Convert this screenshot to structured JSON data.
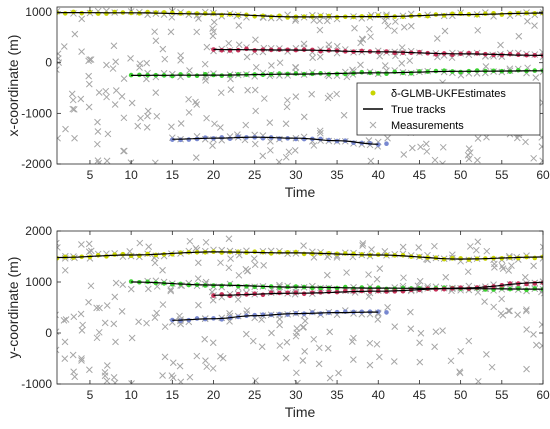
{
  "chart_data": [
    {
      "type": "scatter",
      "xlabel": "Time",
      "ylabel": "x-coordinate (m)",
      "xlim": [
        1,
        60
      ],
      "ylim": [
        -2000,
        1100
      ],
      "xticks": [
        5,
        10,
        15,
        20,
        25,
        30,
        35,
        40,
        45,
        50,
        55,
        60
      ],
      "yticks": [
        -2000,
        -1000,
        0,
        1000
      ],
      "legend": {
        "placement": "right-middle",
        "entries": [
          {
            "label": "δ-GLMB-UKFEstimates",
            "marker": "dot",
            "color": "#c8d400"
          },
          {
            "label": "True tracks",
            "marker": "line",
            "color": "#000000"
          },
          {
            "label": "Measurements",
            "marker": "x",
            "color": "#aaaaaa"
          }
        ]
      },
      "tracks": [
        {
          "color": "#c8d400",
          "t_start": 1,
          "t_end": 60,
          "t_est_end": 60,
          "truth": [
            [
              1,
              990
            ],
            [
              10,
              985
            ],
            [
              20,
              960
            ],
            [
              30,
              905
            ],
            [
              40,
              910
            ],
            [
              50,
              950
            ],
            [
              60,
              980
            ]
          ]
        },
        {
          "color": "#c8325a",
          "t_start": 20,
          "t_end": 60,
          "t_est_end": 60,
          "truth": [
            [
              20,
              260
            ],
            [
              30,
              250
            ],
            [
              40,
              215
            ],
            [
              50,
              175
            ],
            [
              60,
              145
            ]
          ]
        },
        {
          "color": "#3cd232",
          "t_start": 10,
          "t_end": 60,
          "t_est_end": 60,
          "truth": [
            [
              10,
              -250
            ],
            [
              20,
              -245
            ],
            [
              30,
              -225
            ],
            [
              40,
              -200
            ],
            [
              50,
              -170
            ],
            [
              60,
              -160
            ]
          ]
        },
        {
          "color": "#7888d0",
          "t_start": 15,
          "t_end": 40,
          "t_est_end": 41,
          "truth": [
            [
              15,
              -1510
            ],
            [
              20,
              -1490
            ],
            [
              25,
              -1470
            ],
            [
              30,
              -1490
            ],
            [
              35,
              -1540
            ],
            [
              40,
              -1610
            ]
          ]
        }
      ]
    },
    {
      "type": "scatter",
      "xlabel": "Time",
      "ylabel": "y-coordinate (m)",
      "xlim": [
        1,
        60
      ],
      "ylim": [
        -1000,
        2000
      ],
      "xticks": [
        5,
        10,
        15,
        20,
        25,
        30,
        35,
        40,
        45,
        50,
        55,
        60
      ],
      "yticks": [
        -1000,
        0,
        1000,
        2000
      ],
      "tracks": [
        {
          "color": "#c8d400",
          "t_start": 1,
          "t_end": 60,
          "t_est_end": 60,
          "truth": [
            [
              1,
              1480
            ],
            [
              10,
              1530
            ],
            [
              20,
              1590
            ],
            [
              30,
              1570
            ],
            [
              40,
              1530
            ],
            [
              50,
              1450
            ],
            [
              60,
              1490
            ]
          ]
        },
        {
          "color": "#3cd232",
          "t_start": 10,
          "t_end": 60,
          "t_est_end": 60,
          "truth": [
            [
              10,
              1000
            ],
            [
              20,
              940
            ],
            [
              30,
              900
            ],
            [
              40,
              880
            ],
            [
              50,
              870
            ],
            [
              60,
              860
            ]
          ]
        },
        {
          "color": "#c8325a",
          "t_start": 20,
          "t_end": 60,
          "t_est_end": 60,
          "truth": [
            [
              20,
              740
            ],
            [
              30,
              780
            ],
            [
              40,
              820
            ],
            [
              50,
              880
            ],
            [
              60,
              990
            ]
          ]
        },
        {
          "color": "#7888d0",
          "t_start": 15,
          "t_end": 40,
          "t_est_end": 41,
          "truth": [
            [
              15,
              250
            ],
            [
              20,
              280
            ],
            [
              25,
              340
            ],
            [
              30,
              380
            ],
            [
              35,
              400
            ],
            [
              40,
              410
            ]
          ]
        }
      ]
    }
  ]
}
